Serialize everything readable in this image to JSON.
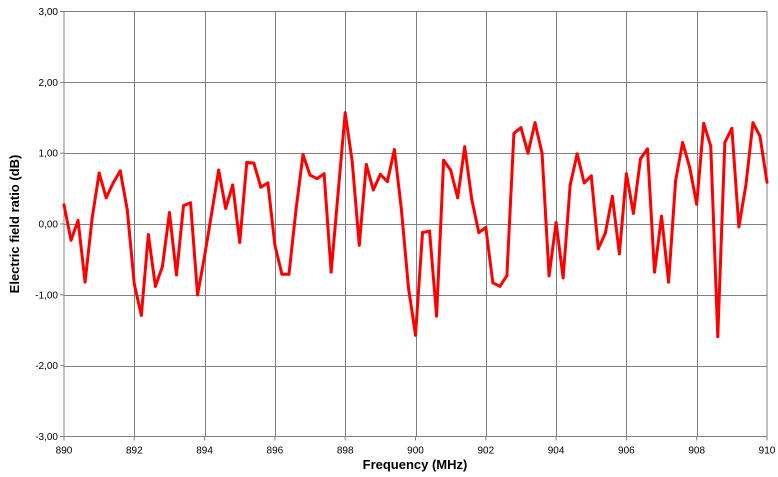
{
  "chart_data": {
    "type": "line",
    "title": "",
    "xlabel": "Frequency (MHz)",
    "ylabel": "Electric field ratio (dB)",
    "xlim": [
      890,
      910
    ],
    "ylim": [
      -3,
      3
    ],
    "x_ticks": [
      890,
      892,
      894,
      896,
      898,
      900,
      902,
      904,
      906,
      908,
      910
    ],
    "x_tick_labels": [
      "890",
      "892",
      "894",
      "896",
      "898",
      "900",
      "902",
      "904",
      "906",
      "908",
      "910"
    ],
    "y_ticks": [
      -3,
      -2,
      -1,
      0,
      1,
      2,
      3
    ],
    "y_tick_labels": [
      "-3,00",
      "-2,00",
      "-1,00",
      "0,00",
      "1,00",
      "2,00",
      "3,00"
    ],
    "grid": true,
    "legend": "none",
    "colors": {
      "series": "#ff0000",
      "grid": "#808080"
    },
    "series": [
      {
        "color": "#ff0000",
        "x": [
          890.0,
          890.2,
          890.4,
          890.6,
          890.8,
          891.0,
          891.2,
          891.4,
          891.6,
          891.8,
          892.0,
          892.2,
          892.4,
          892.6,
          892.8,
          893.0,
          893.2,
          893.4,
          893.6,
          893.8,
          894.0,
          894.2,
          894.4,
          894.6,
          894.8,
          895.0,
          895.2,
          895.4,
          895.6,
          895.8,
          896.0,
          896.2,
          896.4,
          896.6,
          896.8,
          897.0,
          897.2,
          897.4,
          897.6,
          897.8,
          898.0,
          898.2,
          898.4,
          898.6,
          898.8,
          899.0,
          899.2,
          899.4,
          899.6,
          899.8,
          900.0,
          900.2,
          900.4,
          900.6,
          900.8,
          901.0,
          901.2,
          901.4,
          901.6,
          901.8,
          902.0,
          902.2,
          902.4,
          902.6,
          902.8,
          903.0,
          903.2,
          903.4,
          903.6,
          903.8,
          904.0,
          904.2,
          904.4,
          904.6,
          904.8,
          905.0,
          905.2,
          905.4,
          905.6,
          905.8,
          906.0,
          906.2,
          906.4,
          906.6,
          906.8,
          907.0,
          907.2,
          907.4,
          907.6,
          907.8,
          908.0,
          908.2,
          908.4,
          908.6,
          908.8,
          909.0,
          909.2,
          909.4,
          909.6,
          909.8,
          910.0
        ],
        "y": [
          0.27,
          -0.23,
          0.05,
          -0.82,
          0.08,
          0.72,
          0.37,
          0.58,
          0.75,
          0.2,
          -0.85,
          -1.29,
          -0.15,
          -0.88,
          -0.6,
          0.16,
          -0.72,
          0.26,
          0.3,
          -1.0,
          -0.45,
          0.15,
          0.76,
          0.22,
          0.55,
          -0.26,
          0.87,
          0.86,
          0.52,
          0.58,
          -0.3,
          -0.71,
          -0.71,
          0.2,
          0.98,
          0.69,
          0.64,
          0.71,
          -0.68,
          0.45,
          1.57,
          0.88,
          -0.3,
          0.84,
          0.48,
          0.7,
          0.6,
          1.05,
          0.2,
          -0.9,
          -1.57,
          -0.12,
          -0.1,
          -1.3,
          0.9,
          0.76,
          0.37,
          1.09,
          0.35,
          -0.12,
          -0.05,
          -0.83,
          -0.88,
          -0.73,
          1.28,
          1.36,
          1.0,
          1.43,
          1.0,
          -0.73,
          0.02,
          -0.76,
          0.55,
          0.99,
          0.58,
          0.68,
          -0.35,
          -0.13,
          0.39,
          -0.42,
          0.71,
          0.15,
          0.92,
          1.06,
          -0.68,
          0.11,
          -0.82,
          0.61,
          1.15,
          0.8,
          0.28,
          1.42,
          1.1,
          -1.59,
          1.15,
          1.35,
          -0.04,
          0.55,
          1.43,
          1.24,
          0.59
        ]
      }
    ]
  }
}
